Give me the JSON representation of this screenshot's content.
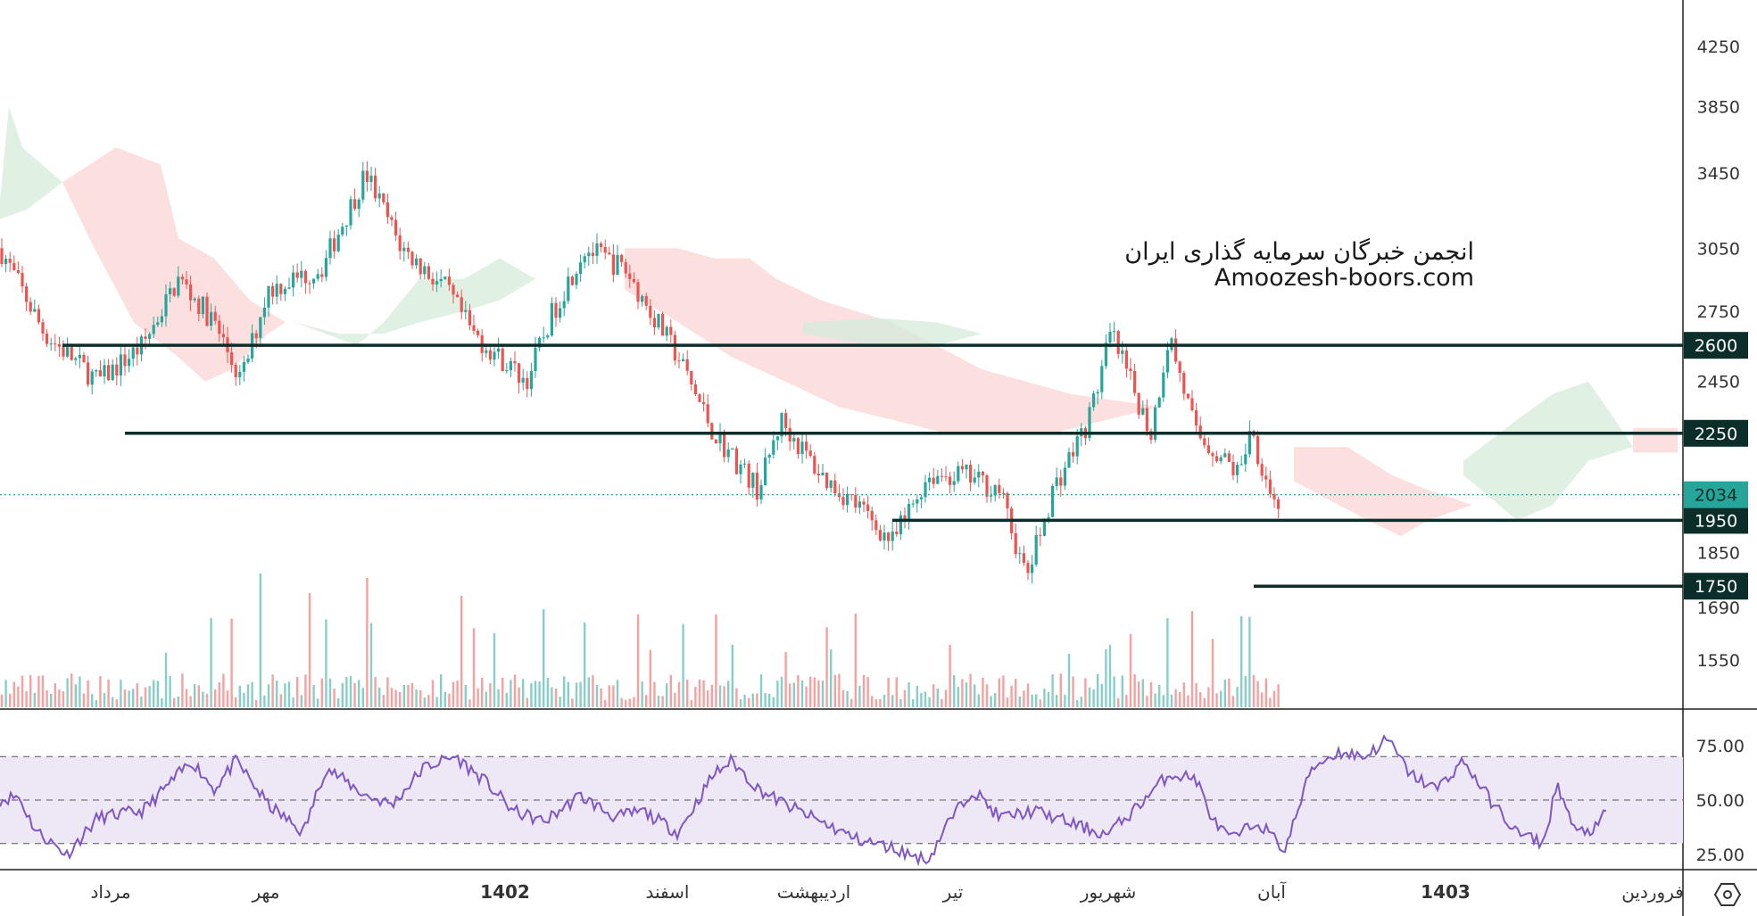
{
  "watermark": {
    "line1": "انجمن خبرگان سرمایه گذاری ایران",
    "line2": "Amoozesh-boors.com"
  },
  "price_axis": {
    "ticks": [
      "4250",
      "3850",
      "3450",
      "3050",
      "2750",
      "2450",
      "1850",
      "1690",
      "1550"
    ],
    "line_labels": [
      "2600",
      "2250",
      "1950",
      "1750"
    ],
    "current_price": "2034"
  },
  "rsi_axis": {
    "ticks": [
      "75.00",
      "50.00",
      "25.00"
    ]
  },
  "time_axis": {
    "labels": [
      "مرداد",
      "مهر",
      "1402",
      "اسفند",
      "اردیبهشت",
      "تیر",
      "شهریور",
      "آبان",
      "1403",
      "فروردین"
    ],
    "bold": [
      "1402",
      "1403"
    ]
  },
  "colors": {
    "up": "#26a69a",
    "down": "#ef5350",
    "level_line": "#0b2e2a",
    "cloud_green": "#d5ecd9",
    "cloud_red": "#fbd5d5",
    "rsi_line": "#7e57c2",
    "rsi_band": "#ede7f6",
    "current_badge": "#26a69a"
  },
  "chart_data": {
    "type": "candlestick",
    "y_scale": "log",
    "support_resistance_levels": [
      2600,
      2250,
      1950,
      1750
    ],
    "current_price": 2034,
    "price_anchor_points": [
      [
        0,
        3050
      ],
      [
        50,
        2650
      ],
      [
        110,
        2450
      ],
      [
        160,
        2600
      ],
      [
        200,
        2900
      ],
      [
        240,
        2700
      ],
      [
        270,
        2450
      ],
      [
        300,
        2850
      ],
      [
        360,
        2950
      ],
      [
        410,
        3450
      ],
      [
        450,
        3050
      ],
      [
        500,
        2850
      ],
      [
        530,
        2650
      ],
      [
        590,
        2450
      ],
      [
        620,
        2750
      ],
      [
        655,
        3050
      ],
      [
        700,
        2950
      ],
      [
        760,
        2550
      ],
      [
        800,
        2250
      ],
      [
        850,
        2050
      ],
      [
        875,
        2300
      ],
      [
        920,
        2100
      ],
      [
        960,
        2000
      ],
      [
        1000,
        1880
      ],
      [
        1040,
        2100
      ],
      [
        1080,
        2100
      ],
      [
        1120,
        2050
      ],
      [
        1150,
        1770
      ],
      [
        1180,
        2050
      ],
      [
        1220,
        2300
      ],
      [
        1245,
        2650
      ],
      [
        1290,
        2250
      ],
      [
        1310,
        2650
      ],
      [
        1340,
        2250
      ],
      [
        1390,
        2100
      ],
      [
        1400,
        2280
      ],
      [
        1430,
        1990
      ],
      [
        1435,
        2034
      ]
    ],
    "rsi_levels": [
      70,
      50,
      30
    ],
    "rsi_axis_range": [
      20,
      85
    ]
  }
}
